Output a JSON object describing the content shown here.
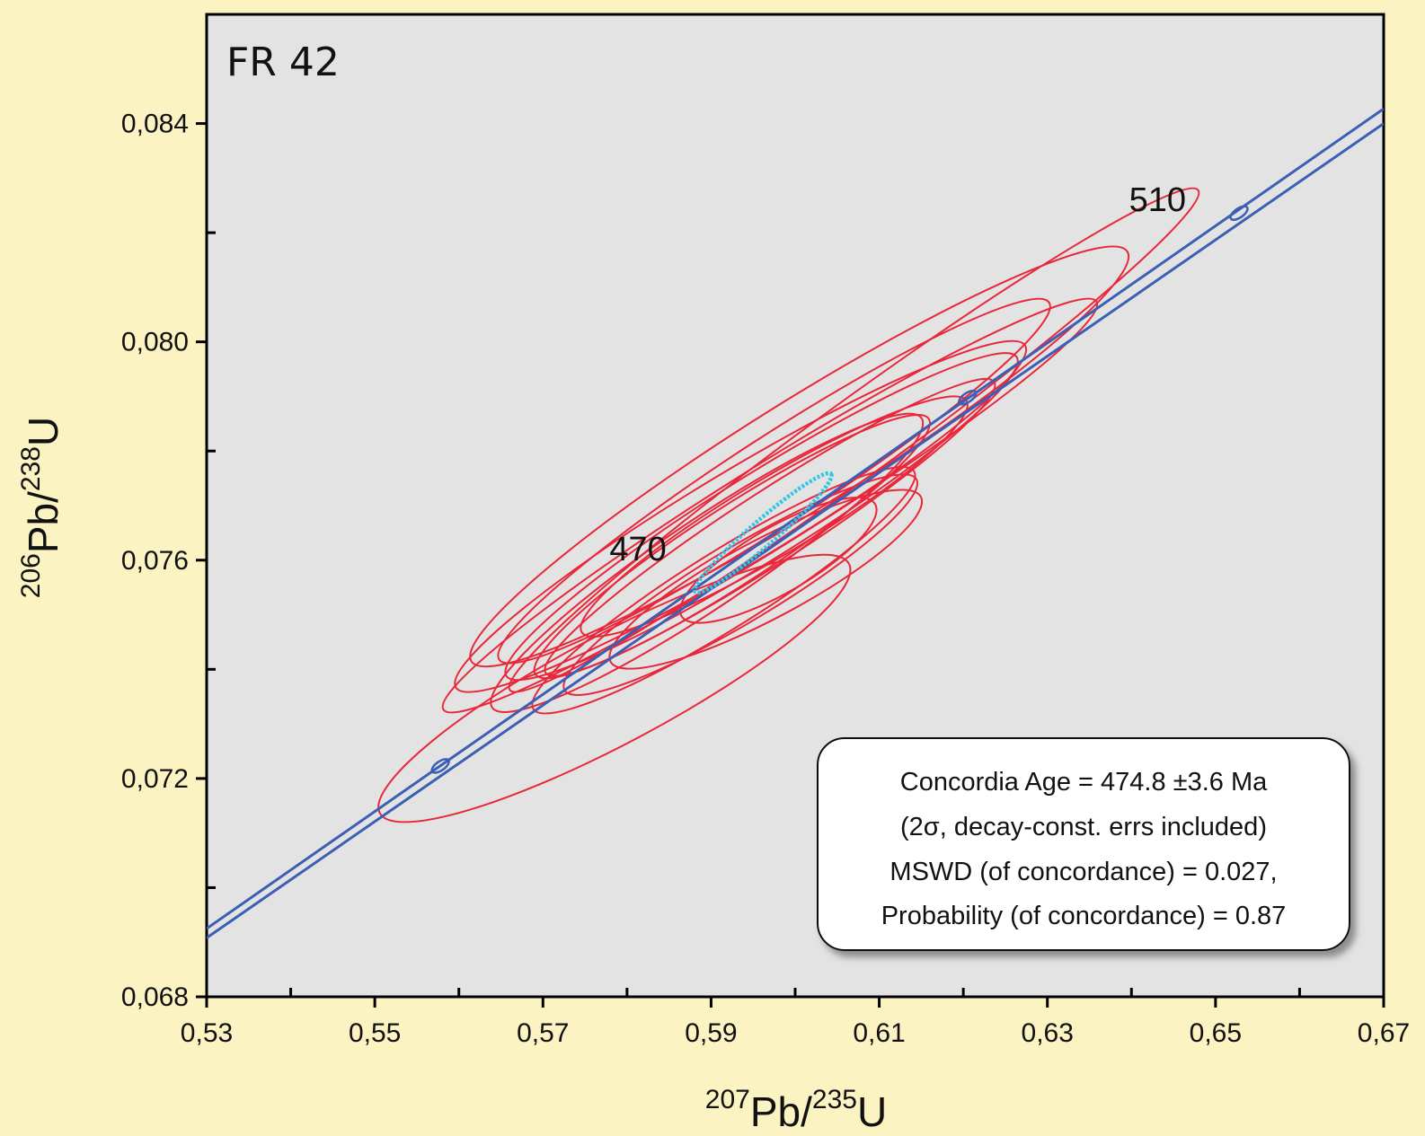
{
  "chart_data": {
    "type": "scatter",
    "title": "",
    "panel_label": "FR 42",
    "xlabel": {
      "mass1": "207",
      "element": "Pb/",
      "mass2": "235",
      "element2": "U"
    },
    "ylabel": {
      "mass1": "206",
      "element": "Pb/",
      "mass2": "238",
      "element2": "U"
    },
    "xlim": [
      0.53,
      0.67
    ],
    "ylim": [
      0.068,
      0.086
    ],
    "x_ticks": [
      {
        "value": 0.53,
        "label": "0,53"
      },
      {
        "value": 0.55,
        "label": "0,55"
      },
      {
        "value": 0.57,
        "label": "0,57"
      },
      {
        "value": 0.59,
        "label": "0,59"
      },
      {
        "value": 0.61,
        "label": "0,61"
      },
      {
        "value": 0.63,
        "label": "0,63"
      },
      {
        "value": 0.65,
        "label": "0,65"
      },
      {
        "value": 0.67,
        "label": "0,67"
      }
    ],
    "x_minor_ticks": [
      0.54,
      0.56,
      0.58,
      0.6,
      0.62,
      0.64,
      0.66
    ],
    "y_ticks": [
      {
        "value": 0.068,
        "label": "0,068"
      },
      {
        "value": 0.072,
        "label": "0,072"
      },
      {
        "value": 0.076,
        "label": "0,076"
      },
      {
        "value": 0.08,
        "label": "0,080"
      },
      {
        "value": 0.084,
        "label": "0,084"
      }
    ],
    "y_minor_ticks": [
      0.07,
      0.074,
      0.078,
      0.082
    ],
    "grid": false,
    "colors": {
      "plot_background": "#e3e3e3",
      "page_background": "#fcf3c3",
      "ellipse": "#e8283a",
      "concordia": "#3a5fb5",
      "concordia_ellipse": "#32c6e6"
    },
    "concordia": {
      "band_lower": [
        [
          0.53,
          0.06908
        ],
        [
          0.67,
          0.084
        ]
      ],
      "band_upper": [
        [
          0.53,
          0.06925
        ],
        [
          0.67,
          0.08427
        ]
      ],
      "age_markers": [
        {
          "label": "",
          "x": 0.5578,
          "y": 0.07223
        },
        {
          "label": "",
          "x": 0.6205,
          "y": 0.07898
        },
        {
          "label": "",
          "x": 0.6528,
          "y": 0.08236
        }
      ],
      "age_labels": [
        {
          "label": "470",
          "x": 0.5813,
          "y": 0.076
        },
        {
          "label": "510",
          "x": 0.6431,
          "y": 0.0824
        }
      ]
    },
    "error_ellipses": [
      {
        "cx": 0.597,
        "cy": 0.077,
        "rx": 0.0458,
        "ry": 0.00075,
        "angle_deg": 32
      },
      {
        "cx": 0.5975,
        "cy": 0.07745,
        "rx": 0.039,
        "ry": 0.0008,
        "angle_deg": 33
      },
      {
        "cx": 0.5935,
        "cy": 0.0768,
        "rx": 0.0395,
        "ry": 0.00085,
        "angle_deg": 31
      },
      {
        "cx": 0.596,
        "cy": 0.0768,
        "rx": 0.0358,
        "ry": 0.00078,
        "angle_deg": 32
      },
      {
        "cx": 0.5895,
        "cy": 0.07595,
        "rx": 0.0308,
        "ry": 0.0008,
        "angle_deg": 34
      },
      {
        "cx": 0.5925,
        "cy": 0.07625,
        "rx": 0.0279,
        "ry": 0.0007,
        "angle_deg": 33
      },
      {
        "cx": 0.5915,
        "cy": 0.07545,
        "rx": 0.0267,
        "ry": 0.0007,
        "angle_deg": 32
      },
      {
        "cx": 0.5935,
        "cy": 0.07555,
        "rx": 0.0244,
        "ry": 0.00068,
        "angle_deg": 31
      },
      {
        "cx": 0.5965,
        "cy": 0.07565,
        "rx": 0.0209,
        "ry": 0.00072,
        "angle_deg": 28
      },
      {
        "cx": 0.598,
        "cy": 0.076,
        "rx": 0.0133,
        "ry": 0.0006,
        "angle_deg": 30
      },
      {
        "cx": 0.607,
        "cy": 0.0782,
        "rx": 0.0506,
        "ry": 0.0007,
        "angle_deg": 36
      },
      {
        "cx": 0.6005,
        "cy": 0.0779,
        "rx": 0.046,
        "ry": 0.001,
        "angle_deg": 32
      },
      {
        "cx": 0.597,
        "cy": 0.0766,
        "rx": 0.0318,
        "ry": 0.00065,
        "angle_deg": 33
      },
      {
        "cx": 0.5975,
        "cy": 0.0768,
        "rx": 0.0267,
        "ry": 0.0007,
        "angle_deg": 31
      },
      {
        "cx": 0.5785,
        "cy": 0.07365,
        "rx": 0.0316,
        "ry": 0.001,
        "angle_deg": 28
      }
    ],
    "concordia_ellipse": {
      "cx": 0.5962,
      "cy": 0.0765,
      "rx": 0.0107,
      "ry": 0.00023,
      "angle_deg": 41
    },
    "result_box": {
      "line1": "Concordia Age = 474.8 ±3.6 Ma",
      "line2": "(2σ, decay-const. errs included)",
      "line3": "MSWD (of concordance) = 0.027,",
      "line4": "Probability (of concordance) = 0.87"
    }
  }
}
